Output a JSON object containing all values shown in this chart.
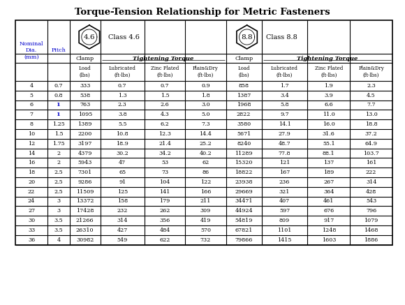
{
  "title": "Torque-Tension Relationship for Metric Fasteners",
  "rows": [
    [
      "4",
      "0.7",
      "333",
      "0.7",
      "0.7",
      "0.9",
      "858",
      "1.7",
      "1.9",
      "2.3"
    ],
    [
      "5",
      "0.8",
      "538",
      "1.3",
      "1.5",
      "1.8",
      "1387",
      "3.4",
      "3.9",
      "4.5"
    ],
    [
      "6",
      "1",
      "763",
      "2.3",
      "2.6",
      "3.0",
      "1968",
      "5.8",
      "6.6",
      "7.7"
    ],
    [
      "7",
      "1",
      "1095",
      "3.8",
      "4.3",
      "5.0",
      "2822",
      "9.7",
      "11.0",
      "13.0"
    ],
    [
      "8",
      "1.25",
      "1389",
      "5.5",
      "6.2",
      "7.3",
      "3580",
      "14.1",
      "16.0",
      "18.8"
    ],
    [
      "10",
      "1.5",
      "2200",
      "10.8",
      "12.3",
      "14.4",
      "5671",
      "27.9",
      "31.6",
      "37.2"
    ],
    [
      "12",
      "1.75",
      "3197",
      "18.9",
      "21.4",
      "25.2",
      "8240",
      "48.7",
      "55.1",
      "64.9"
    ],
    [
      "14",
      "2",
      "4379",
      "30.2",
      "34.2",
      "40.2",
      "11289",
      "77.8",
      "88.1",
      "103.7"
    ],
    [
      "16",
      "2",
      "5943",
      "47",
      "53",
      "62",
      "15320",
      "121",
      "137",
      "161"
    ],
    [
      "18",
      "2.5",
      "7301",
      "65",
      "73",
      "86",
      "18822",
      "167",
      "189",
      "222"
    ],
    [
      "20",
      "2.5",
      "9286",
      "91",
      "104",
      "122",
      "23938",
      "236",
      "267",
      "314"
    ],
    [
      "22",
      "2.5",
      "11509",
      "125",
      "141",
      "166",
      "29669",
      "321",
      "364",
      "428"
    ],
    [
      "24",
      "3",
      "13372",
      "158",
      "179",
      "211",
      "34471",
      "407",
      "461",
      "543"
    ],
    [
      "27",
      "3",
      "17428",
      "232",
      "262",
      "309",
      "44924",
      "597",
      "676",
      "796"
    ],
    [
      "30",
      "3.5",
      "21266",
      "314",
      "356",
      "419",
      "54819",
      "809",
      "917",
      "1079"
    ],
    [
      "33",
      "3.5",
      "26310",
      "427",
      "484",
      "570",
      "67821",
      "1101",
      "1248",
      "1468"
    ],
    [
      "36",
      "4",
      "30982",
      "549",
      "622",
      "732",
      "79866",
      "1415",
      "1603",
      "1886"
    ]
  ],
  "bg_color": "#ffffff",
  "text_color": "#000000",
  "highlight_color": "#0000cc",
  "col_widths_rel": [
    38,
    26,
    36,
    52,
    48,
    48,
    42,
    54,
    50,
    50
  ],
  "title_fontsize": 9.5,
  "header_fontsize": 5.8,
  "data_fontsize": 5.8,
  "subheader_fontsize": 5.0
}
